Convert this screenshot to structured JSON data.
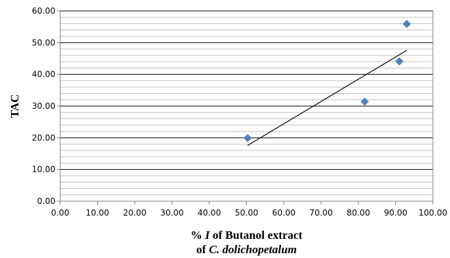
{
  "chart_data": {
    "type": "scatter",
    "title": "",
    "xlabel_line1_prefix": "% ",
    "xlabel_line1_italic": "I",
    "xlabel_line1_suffix": " of Butanol extract",
    "xlabel_line2_prefix": "of ",
    "xlabel_line2_italic": "C. dolichopetalum",
    "ylabel": "TAC",
    "xlim": [
      0,
      100
    ],
    "ylim": [
      0,
      60
    ],
    "x_ticks": [
      "0.00",
      "10.00",
      "20.00",
      "30.00",
      "40.00",
      "50.00",
      "60.00",
      "70.00",
      "80.00",
      "90.00",
      "100.00"
    ],
    "y_ticks": [
      "0.00",
      "10.00",
      "20.00",
      "30.00",
      "40.00",
      "50.00",
      "60.00"
    ],
    "series": [
      {
        "points": [
          {
            "x": 50.3,
            "y": 19.9
          },
          {
            "x": 81.7,
            "y": 31.4
          },
          {
            "x": 91.0,
            "y": 44.1
          },
          {
            "x": 93.0,
            "y": 55.9
          }
        ]
      }
    ],
    "trendline": {
      "x": [
        50.3,
        93.0
      ],
      "y": [
        17.6,
        47.6
      ]
    },
    "minor_grid_step": 2,
    "major_grid_step": 10,
    "marker_color": "#4F81BD",
    "marker_shape": "diamond"
  }
}
